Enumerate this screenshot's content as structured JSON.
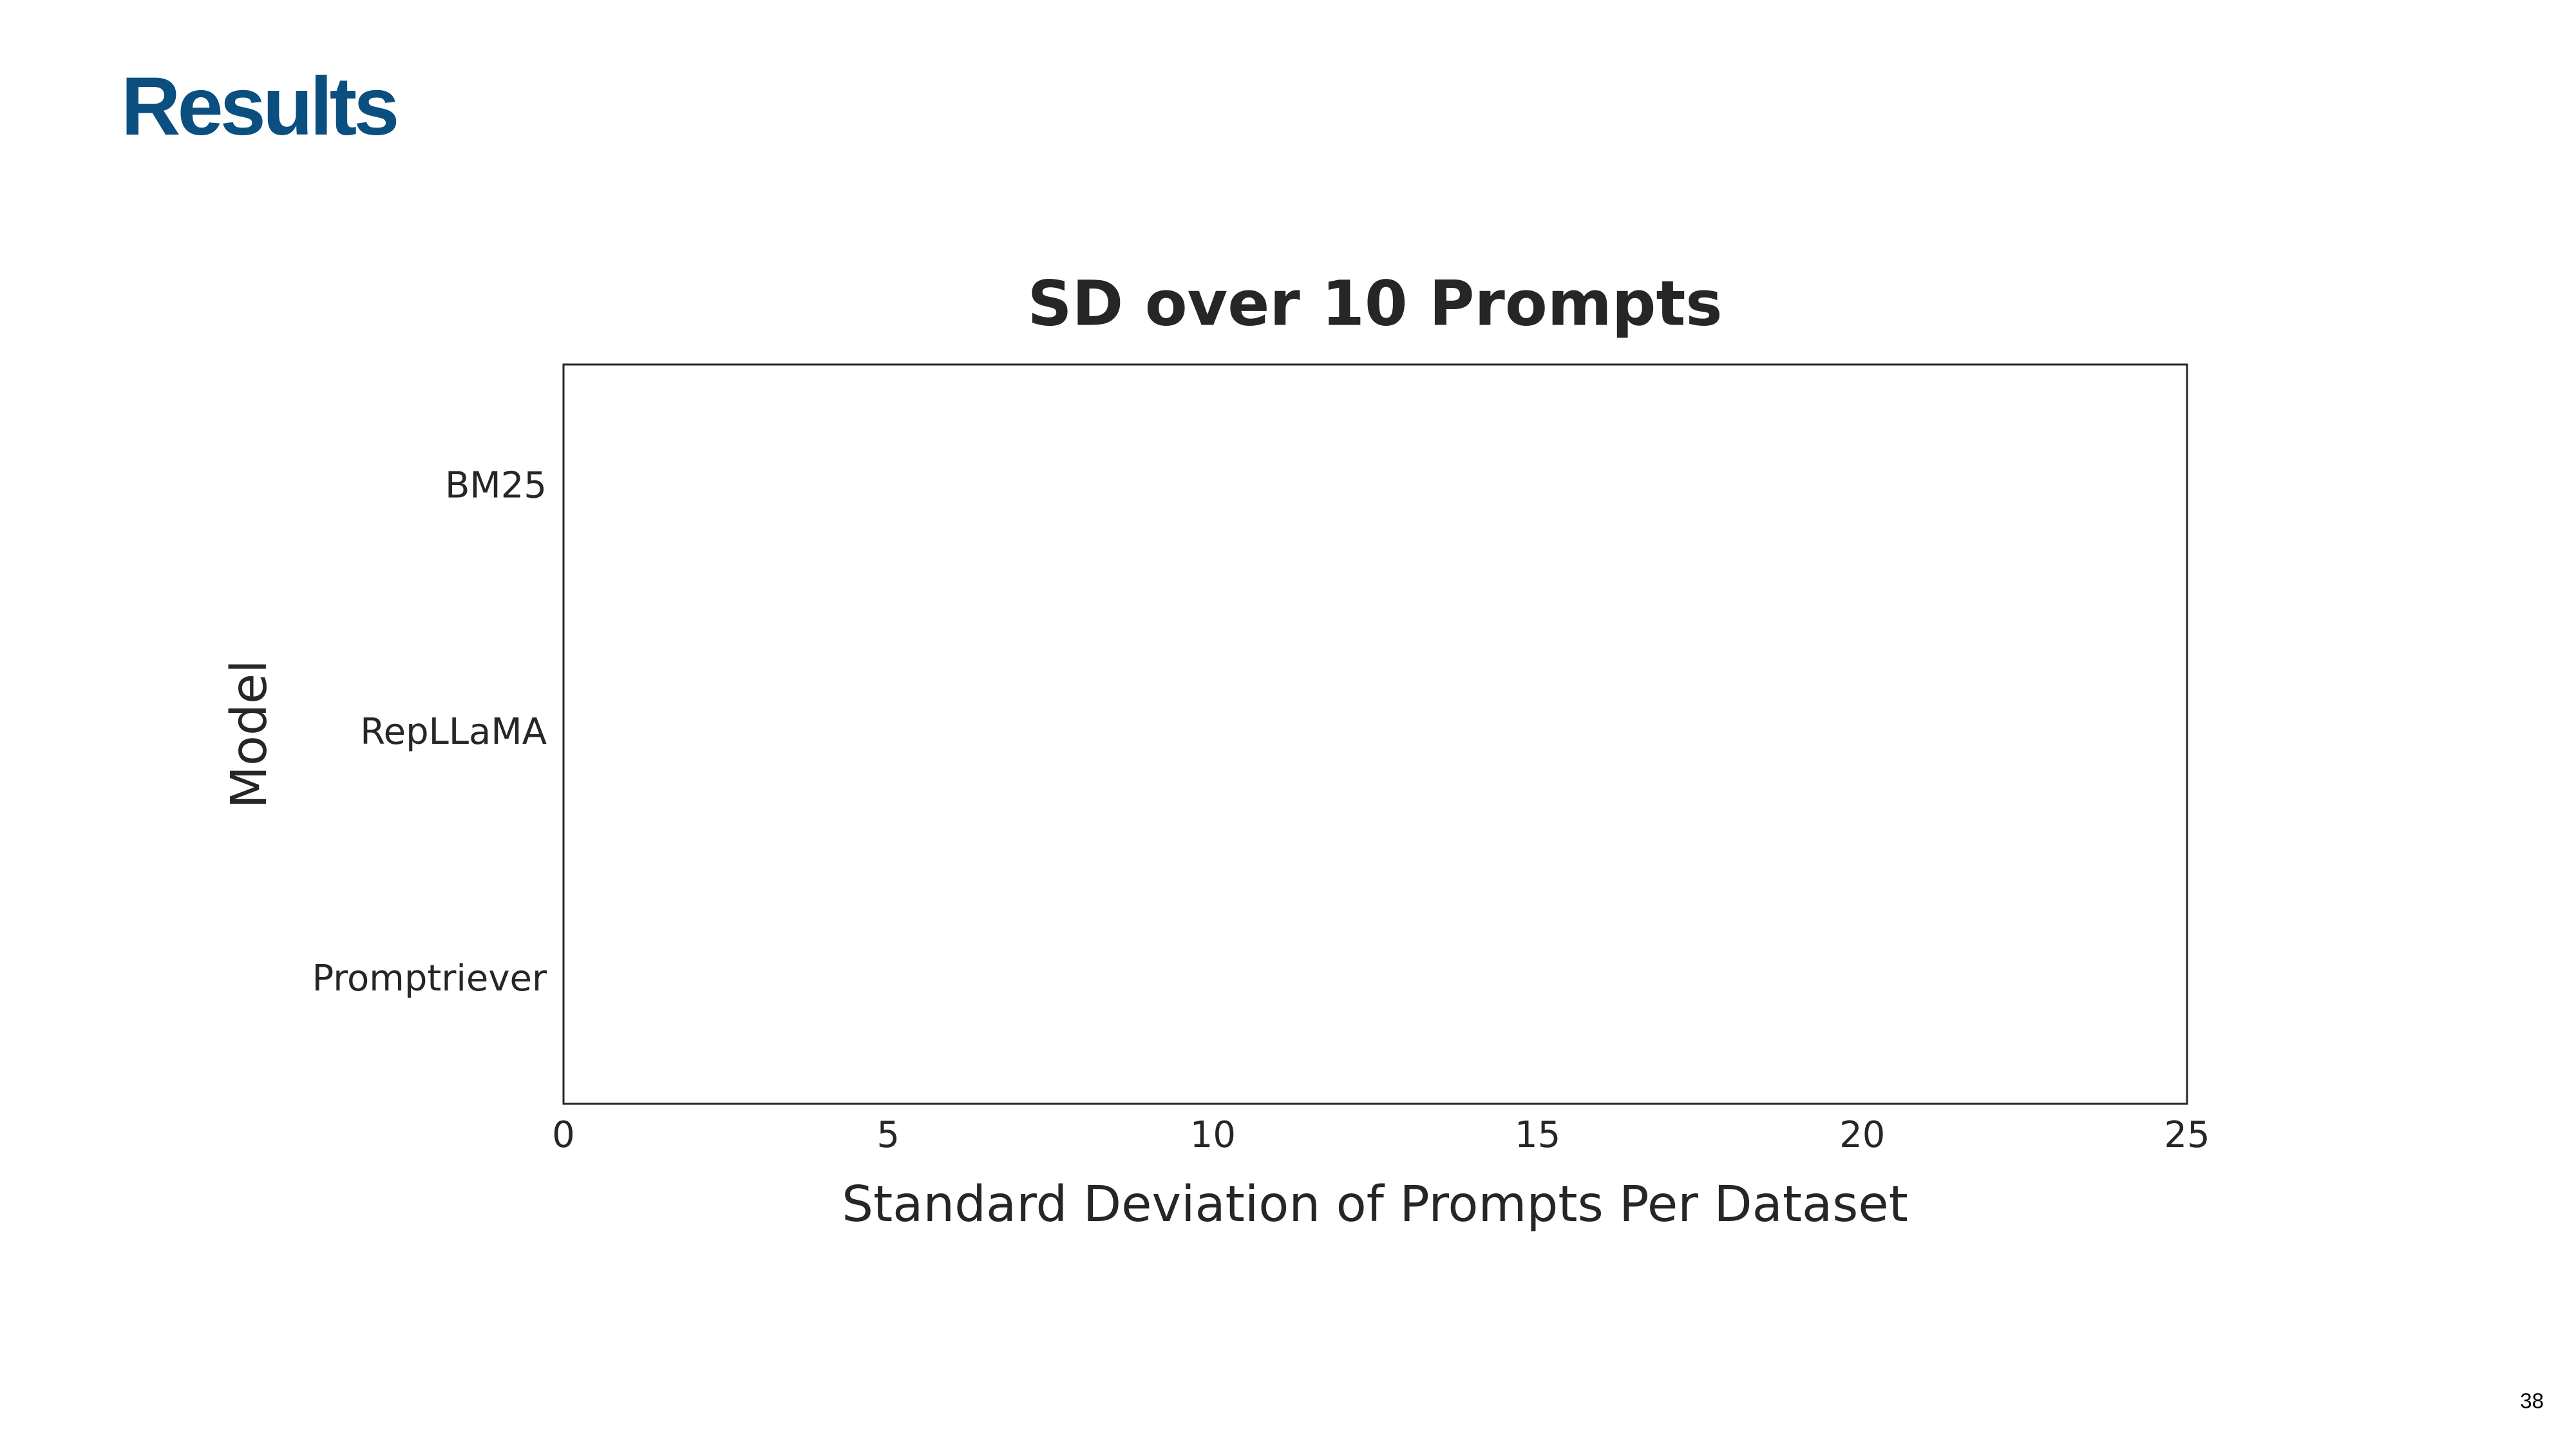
{
  "slide_title": "Results",
  "page_number": "38",
  "chart_data": {
    "type": "bar",
    "orientation": "horizontal",
    "title": "SD over 10 Prompts",
    "x_label": "Standard Deviation of Prompts Per Dataset",
    "y_label": "Model",
    "categories": [
      "BM25",
      "RepLLaMA",
      "Promptriever"
    ],
    "xlim": [
      0,
      25
    ],
    "xticks": [
      0,
      5,
      10,
      15,
      20,
      25
    ],
    "grid": false
  }
}
